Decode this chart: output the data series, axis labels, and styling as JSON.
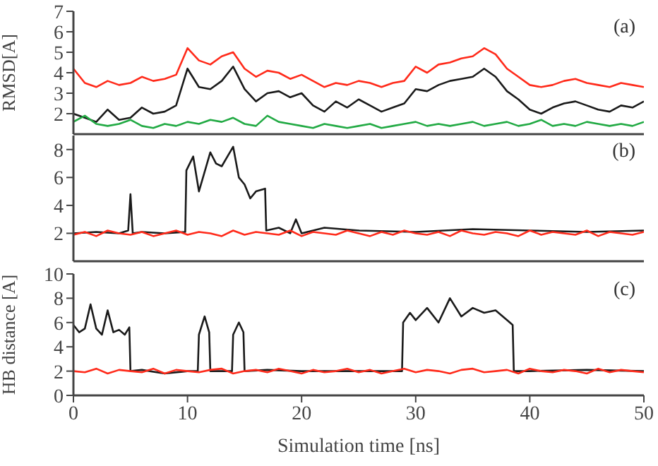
{
  "chart_data": [
    {
      "type": "line",
      "ylabel": "RMSD[A]",
      "annotations": [
        "(a)"
      ],
      "tick_labels": "y",
      "xlim": [
        0,
        50
      ],
      "xticks": [
        0,
        10,
        20,
        30,
        40,
        50
      ],
      "ylim": [
        1,
        7
      ],
      "yticks": [
        2,
        3,
        4,
        5,
        6,
        7
      ],
      "marker": "none",
      "line_style": "solid",
      "x": [
        0,
        1,
        2,
        3,
        4,
        5,
        6,
        7,
        8,
        9,
        10,
        11,
        12,
        13,
        14,
        15,
        16,
        17,
        18,
        19,
        20,
        21,
        22,
        23,
        24,
        25,
        26,
        27,
        28,
        29,
        30,
        31,
        32,
        33,
        34,
        35,
        36,
        37,
        38,
        39,
        40,
        41,
        42,
        43,
        44,
        45,
        46,
        47,
        48,
        49,
        50
      ],
      "series": [
        {
          "color": "#ff2a1a",
          "values": [
            4.2,
            3.5,
            3.3,
            3.6,
            3.4,
            3.5,
            3.8,
            3.6,
            3.7,
            3.9,
            5.2,
            4.6,
            4.4,
            4.8,
            5.0,
            4.2,
            3.8,
            4.1,
            4.0,
            3.7,
            3.9,
            3.6,
            3.3,
            3.5,
            3.4,
            3.6,
            3.5,
            3.3,
            3.5,
            3.6,
            4.3,
            4.0,
            4.4,
            4.5,
            4.7,
            4.8,
            5.2,
            4.9,
            4.2,
            3.8,
            3.4,
            3.3,
            3.4,
            3.6,
            3.7,
            3.5,
            3.4,
            3.3,
            3.5,
            3.4,
            3.3
          ]
        },
        {
          "color": "#1a1a1a",
          "values": [
            2.0,
            1.8,
            1.6,
            2.2,
            1.7,
            1.8,
            2.3,
            2.0,
            2.1,
            2.4,
            4.2,
            3.3,
            3.2,
            3.6,
            4.3,
            3.2,
            2.6,
            3.0,
            3.1,
            2.8,
            3.0,
            2.4,
            2.1,
            2.6,
            2.3,
            2.7,
            2.4,
            2.1,
            2.3,
            2.5,
            3.2,
            3.1,
            3.4,
            3.6,
            3.7,
            3.8,
            4.2,
            3.8,
            3.1,
            2.7,
            2.2,
            2.0,
            2.3,
            2.5,
            2.6,
            2.4,
            2.2,
            2.1,
            2.4,
            2.3,
            2.6
          ]
        },
        {
          "color": "#22aa44",
          "values": [
            1.6,
            1.9,
            1.5,
            1.4,
            1.5,
            1.7,
            1.4,
            1.3,
            1.5,
            1.4,
            1.6,
            1.5,
            1.7,
            1.6,
            1.8,
            1.5,
            1.4,
            1.9,
            1.6,
            1.5,
            1.4,
            1.3,
            1.5,
            1.4,
            1.3,
            1.4,
            1.5,
            1.3,
            1.4,
            1.5,
            1.6,
            1.4,
            1.5,
            1.4,
            1.5,
            1.6,
            1.4,
            1.5,
            1.6,
            1.4,
            1.5,
            1.7,
            1.4,
            1.5,
            1.4,
            1.6,
            1.5,
            1.4,
            1.5,
            1.4,
            1.6
          ]
        }
      ]
    },
    {
      "type": "line",
      "annotations": [
        "(b)"
      ],
      "tick_labels": "y",
      "xlim": [
        0,
        50
      ],
      "xticks": [
        0,
        10,
        20,
        30,
        40,
        50
      ],
      "ylim": [
        0,
        9
      ],
      "yticks": [
        2,
        4,
        6,
        8
      ],
      "marker": "none",
      "line_style": "solid",
      "x": [
        0,
        1,
        2,
        3,
        4,
        5,
        6,
        7,
        8,
        9,
        10,
        11,
        12,
        13,
        14,
        15,
        16,
        17,
        18,
        19,
        20,
        21,
        22,
        23,
        24,
        25,
        26,
        27,
        28,
        29,
        30,
        31,
        32,
        33,
        34,
        35,
        36,
        37,
        38,
        39,
        40,
        41,
        42,
        43,
        44,
        45,
        46,
        47,
        48,
        49,
        50
      ],
      "series": [
        {
          "color": "#1a1a1a",
          "x": [
            0,
            2,
            4,
            4.8,
            5,
            5.2,
            6,
            8,
            9.8,
            9.9,
            10.5,
            11,
            12,
            12.5,
            13,
            13.5,
            14,
            14.5,
            15,
            15.5,
            16,
            16.8,
            16.9,
            18,
            19,
            19.5,
            20,
            22,
            25,
            30,
            35,
            40,
            45,
            50
          ],
          "values": [
            2.0,
            2.1,
            2.0,
            2.2,
            4.8,
            2.0,
            2.1,
            2.0,
            2.1,
            6.5,
            7.5,
            5.0,
            7.8,
            7.0,
            6.8,
            7.5,
            8.2,
            6.0,
            5.5,
            4.5,
            5.0,
            5.2,
            2.2,
            2.4,
            2.0,
            3.0,
            2.0,
            2.4,
            2.2,
            2.1,
            2.3,
            2.2,
            2.1,
            2.2
          ]
        },
        {
          "color": "#ff2a1a",
          "values": [
            1.9,
            2.1,
            1.8,
            2.2,
            2.0,
            1.9,
            2.1,
            1.8,
            2.0,
            2.2,
            1.9,
            2.1,
            2.0,
            1.8,
            2.2,
            1.9,
            2.1,
            2.0,
            1.9,
            2.2,
            1.8,
            2.1,
            2.0,
            1.9,
            2.2,
            2.0,
            1.8,
            2.1,
            1.9,
            2.2,
            2.0,
            1.9,
            2.1,
            1.8,
            2.2,
            2.0,
            1.9,
            2.1,
            2.0,
            1.8,
            2.2,
            1.9,
            2.1,
            2.0,
            1.9,
            2.2,
            1.8,
            2.1,
            2.0,
            1.9,
            2.1
          ]
        }
      ]
    },
    {
      "type": "line",
      "xlabel": "Simulation time [ns]",
      "ylabel": "HB distance [A]",
      "annotations": [
        "(c)"
      ],
      "xlim": [
        0,
        50
      ],
      "xticks": [
        0,
        10,
        20,
        30,
        40,
        50
      ],
      "ylim": [
        0,
        10
      ],
      "yticks": [
        0,
        2,
        4,
        6,
        8,
        10
      ],
      "marker": "none",
      "line_style": "solid",
      "x": [
        0,
        1,
        2,
        3,
        4,
        5,
        6,
        7,
        8,
        9,
        10,
        11,
        12,
        13,
        14,
        15,
        16,
        17,
        18,
        19,
        20,
        21,
        22,
        23,
        24,
        25,
        26,
        27,
        28,
        29,
        30,
        31,
        32,
        33,
        34,
        35,
        36,
        37,
        38,
        39,
        40,
        41,
        42,
        43,
        44,
        45,
        46,
        47,
        48,
        49,
        50
      ],
      "series": [
        {
          "color": "#1a1a1a",
          "x": [
            0,
            0.5,
            1,
            1.5,
            2,
            2.5,
            3,
            3.5,
            4,
            4.5,
            4.9,
            5,
            6,
            8,
            10,
            10.9,
            11,
            11.5,
            11.9,
            12,
            13.9,
            14,
            14.5,
            14.9,
            15,
            17,
            20,
            25,
            28.8,
            28.9,
            29.5,
            30,
            31,
            32,
            33,
            34,
            35,
            36,
            37,
            38,
            38.5,
            38.6,
            40,
            45,
            50
          ],
          "values": [
            5.8,
            5.2,
            5.5,
            7.5,
            5.5,
            5.0,
            7.0,
            5.2,
            5.4,
            5.0,
            5.6,
            2.0,
            2.1,
            1.8,
            2.0,
            2.0,
            5.0,
            6.5,
            5.2,
            2.0,
            2.0,
            5.0,
            6.0,
            5.2,
            2.0,
            2.1,
            2.0,
            2.0,
            2.0,
            6.0,
            6.8,
            6.2,
            7.2,
            6.0,
            8.0,
            6.5,
            7.2,
            6.8,
            7.0,
            6.2,
            5.8,
            2.0,
            2.0,
            2.1,
            2.0
          ]
        },
        {
          "color": "#ff2a1a",
          "values": [
            2.0,
            1.9,
            2.2,
            1.8,
            2.1,
            2.0,
            1.9,
            2.2,
            1.8,
            2.1,
            2.0,
            1.9,
            2.1,
            2.2,
            1.8,
            2.0,
            2.1,
            1.9,
            2.2,
            2.0,
            1.8,
            2.1,
            1.9,
            2.0,
            2.2,
            1.9,
            2.1,
            1.8,
            2.0,
            2.2,
            1.9,
            2.1,
            2.0,
            1.8,
            2.1,
            2.2,
            1.9,
            2.0,
            2.1,
            1.8,
            2.2,
            2.0,
            1.9,
            2.1,
            2.0,
            1.8,
            2.2,
            1.9,
            2.1,
            2.0,
            1.9
          ]
        }
      ]
    }
  ]
}
